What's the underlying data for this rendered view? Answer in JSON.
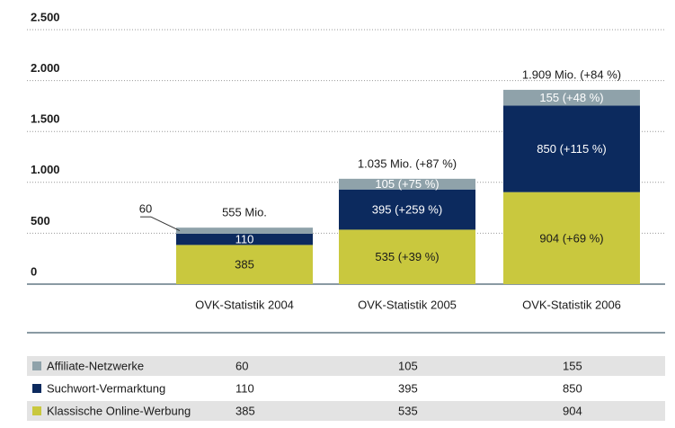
{
  "chart_data": {
    "type": "stacked_bar",
    "categories": [
      "OVK-Statistik 2004",
      "OVK-Statistik 2005",
      "OVK-Statistik 2006"
    ],
    "series": [
      {
        "name": "Klassische Online-Werbung",
        "color": "#c9c83e",
        "values": [
          385,
          535,
          904
        ],
        "value_labels": [
          "385",
          "535 (+39 %)",
          "904 (+69 %)"
        ]
      },
      {
        "name": "Suchwort-Vermarktung",
        "color": "#0c2a5e",
        "values": [
          110,
          395,
          850
        ],
        "value_labels": [
          "110",
          "395 (+259 %)",
          "850 (+115 %)"
        ]
      },
      {
        "name": "Affiliate-Netzwerke",
        "color": "#8fa2aa",
        "values": [
          60,
          105,
          155
        ],
        "value_labels": [
          "60",
          "105 (+75 %)",
          "155 (+48 %)"
        ]
      }
    ],
    "annotations": [
      "555 Mio.",
      "1.035 Mio. (+87 %)",
      "1.909 Mio. (+84 %)"
    ],
    "ylim": [
      0,
      2500
    ],
    "yticks": [
      0,
      500,
      {
        "value": 1000,
        "label": "1.000"
      },
      {
        "value": 1500,
        "label": "1.500"
      },
      {
        "value": 2000,
        "label": "2.000"
      },
      {
        "value": 2500,
        "label": "2.500"
      }
    ],
    "grid": true
  }
}
